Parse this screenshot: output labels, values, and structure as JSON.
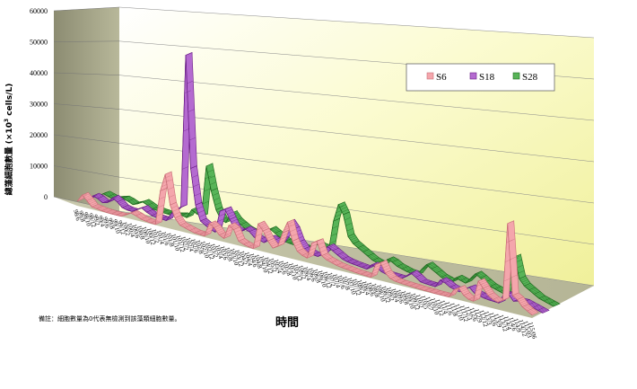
{
  "chart_data": {
    "type": "line",
    "style": "3d-ribbon",
    "xlabel": "時間",
    "ylabel": "總藻細胞數量 (×10",
    "ylabel_sup": "3",
    "ylabel_unit": " cells/L)",
    "yticks": [
      "0",
      "10000",
      "20000",
      "30000",
      "40000",
      "50000",
      "60000"
    ],
    "ylim": [
      0,
      60000
    ],
    "note": "備註：細胞數量為0代表無檢測到該藻類細胞數量。",
    "legend_position": "top-right",
    "categories": [
      "98/6",
      "98/8",
      "98/10",
      "98/12",
      "99/2",
      "99/4",
      "99/6",
      "99/8",
      "99/10",
      "99/12",
      "100/2",
      "100/4",
      "100/6",
      "100/8",
      "100/10",
      "100/12",
      "101/2",
      "101/4",
      "101/6",
      "101/8",
      "101/10",
      "101/12",
      "102/2",
      "102/4",
      "102/6",
      "102/8",
      "102/10",
      "102/12",
      "103/2",
      "103/4",
      "103/6",
      "103/8",
      "103/10",
      "103/12",
      "104/2",
      "104/4",
      "104/6",
      "104/8",
      "104/10",
      "104/12",
      "105/2",
      "105/4",
      "105/6",
      "105/8",
      "105/10",
      "105/12",
      "106/2",
      "106/4",
      "106/6",
      "106/8",
      "106/10",
      "106/12",
      "107/2",
      "107/4",
      "107/6",
      "107/8",
      "107/10",
      "107/12",
      "108/2",
      "108/4",
      "108/6",
      "108/8",
      "108/10",
      "108/12",
      "109/2",
      "109/4",
      "109/6",
      "109/8",
      "109/10",
      "109/12",
      "110/2",
      "110/5",
      "110/7",
      "110/10",
      "110/12",
      "111/4",
      "111/6",
      "111/8",
      "111/10",
      "111/12",
      "112/3",
      "112/6",
      "112/9",
      "112/12",
      "113/3",
      "113/6",
      "113/9",
      "113/12",
      "114/4",
      "114/6",
      "114/9",
      "114/12",
      "115/03",
      "115/06"
    ],
    "series": [
      {
        "name": "S6",
        "color": "#f4a6ac",
        "dark": "#c96f78",
        "values": [
          1500,
          4000,
          2500,
          800,
          600,
          300,
          200,
          100,
          100,
          100,
          1000,
          2000,
          1500,
          800,
          500,
          300,
          200,
          12000,
          18000,
          8000,
          4000,
          2000,
          1500,
          1000,
          600,
          500,
          400,
          5000,
          4000,
          2000,
          1200,
          6000,
          5000,
          1500,
          800,
          400,
          200,
          9000,
          7000,
          4000,
          2000,
          3000,
          8000,
          12000,
          6000,
          3000,
          2000,
          1500,
          7000,
          8000,
          3500,
          2500,
          2000,
          1500,
          1200,
          1000,
          800,
          600,
          500,
          400,
          300,
          5000,
          6000,
          3000,
          1500,
          1000,
          800,
          700,
          600,
          500,
          400,
          300,
          300,
          200,
          200,
          200,
          200,
          3000,
          4000,
          2000,
          1000,
          800,
          8000,
          6000,
          4000,
          3000,
          2500,
          3500,
          30000,
          6000,
          5000,
          3000,
          2000,
          1000
        ]
      },
      {
        "name": "S18",
        "color": "#b46ad0",
        "dark": "#6a1e86",
        "values": [
          800,
          2500,
          2000,
          1000,
          1500,
          3500,
          2500,
          1000,
          600,
          500,
          1500,
          2500,
          1500,
          800,
          500,
          400,
          300,
          3000,
          5000,
          6000,
          58000,
          20000,
          8000,
          3000,
          2000,
          1000,
          500,
          8000,
          9000,
          6000,
          3000,
          2500,
          4000,
          3500,
          2000,
          1500,
          1000,
          3000,
          2500,
          1500,
          4000,
          10000,
          8000,
          4000,
          2000,
          1500,
          1000,
          800,
          2000,
          5000,
          4000,
          3000,
          2000,
          1500,
          1200,
          1000,
          800,
          600,
          2500,
          2000,
          1000,
          500,
          400,
          300,
          200,
          1500,
          3000,
          2000,
          800,
          600,
          500,
          400,
          3000,
          2500,
          1500,
          1000,
          700,
          2000,
          3000,
          1500,
          1000,
          600,
          400,
          300,
          200,
          3500,
          4000,
          2000,
          2500,
          2500,
          2000,
          1500,
          1000,
          500
        ]
      },
      {
        "name": "S28",
        "color": "#58b458",
        "dark": "#1f6a1f",
        "values": [
          1000,
          2000,
          1500,
          1000,
          1500,
          2000,
          1500,
          800,
          1500,
          2500,
          1800,
          1000,
          800,
          600,
          500,
          400,
          800,
          1200,
          900,
          4000,
          3000,
          2500,
          20000,
          12000,
          6000,
          3000,
          2500,
          6000,
          4000,
          3000,
          2000,
          1500,
          1000,
          3000,
          2500,
          4000,
          3000,
          2000,
          1000,
          800,
          600,
          500,
          400,
          300,
          3000,
          2500,
          2000,
          1500,
          12000,
          18000,
          15000,
          8000,
          6000,
          5000,
          4000,
          3000,
          2000,
          1500,
          1000,
          3500,
          3000,
          2000,
          1500,
          1000,
          800,
          600,
          3000,
          5000,
          4000,
          3000,
          2000,
          1500,
          1000,
          3000,
          2500,
          2000,
          4000,
          6000,
          5000,
          4000,
          3000,
          2500,
          2000,
          1500,
          12000,
          15000,
          8000,
          6000,
          5000,
          4000,
          3000,
          2500,
          2000,
          1500
        ]
      }
    ]
  }
}
